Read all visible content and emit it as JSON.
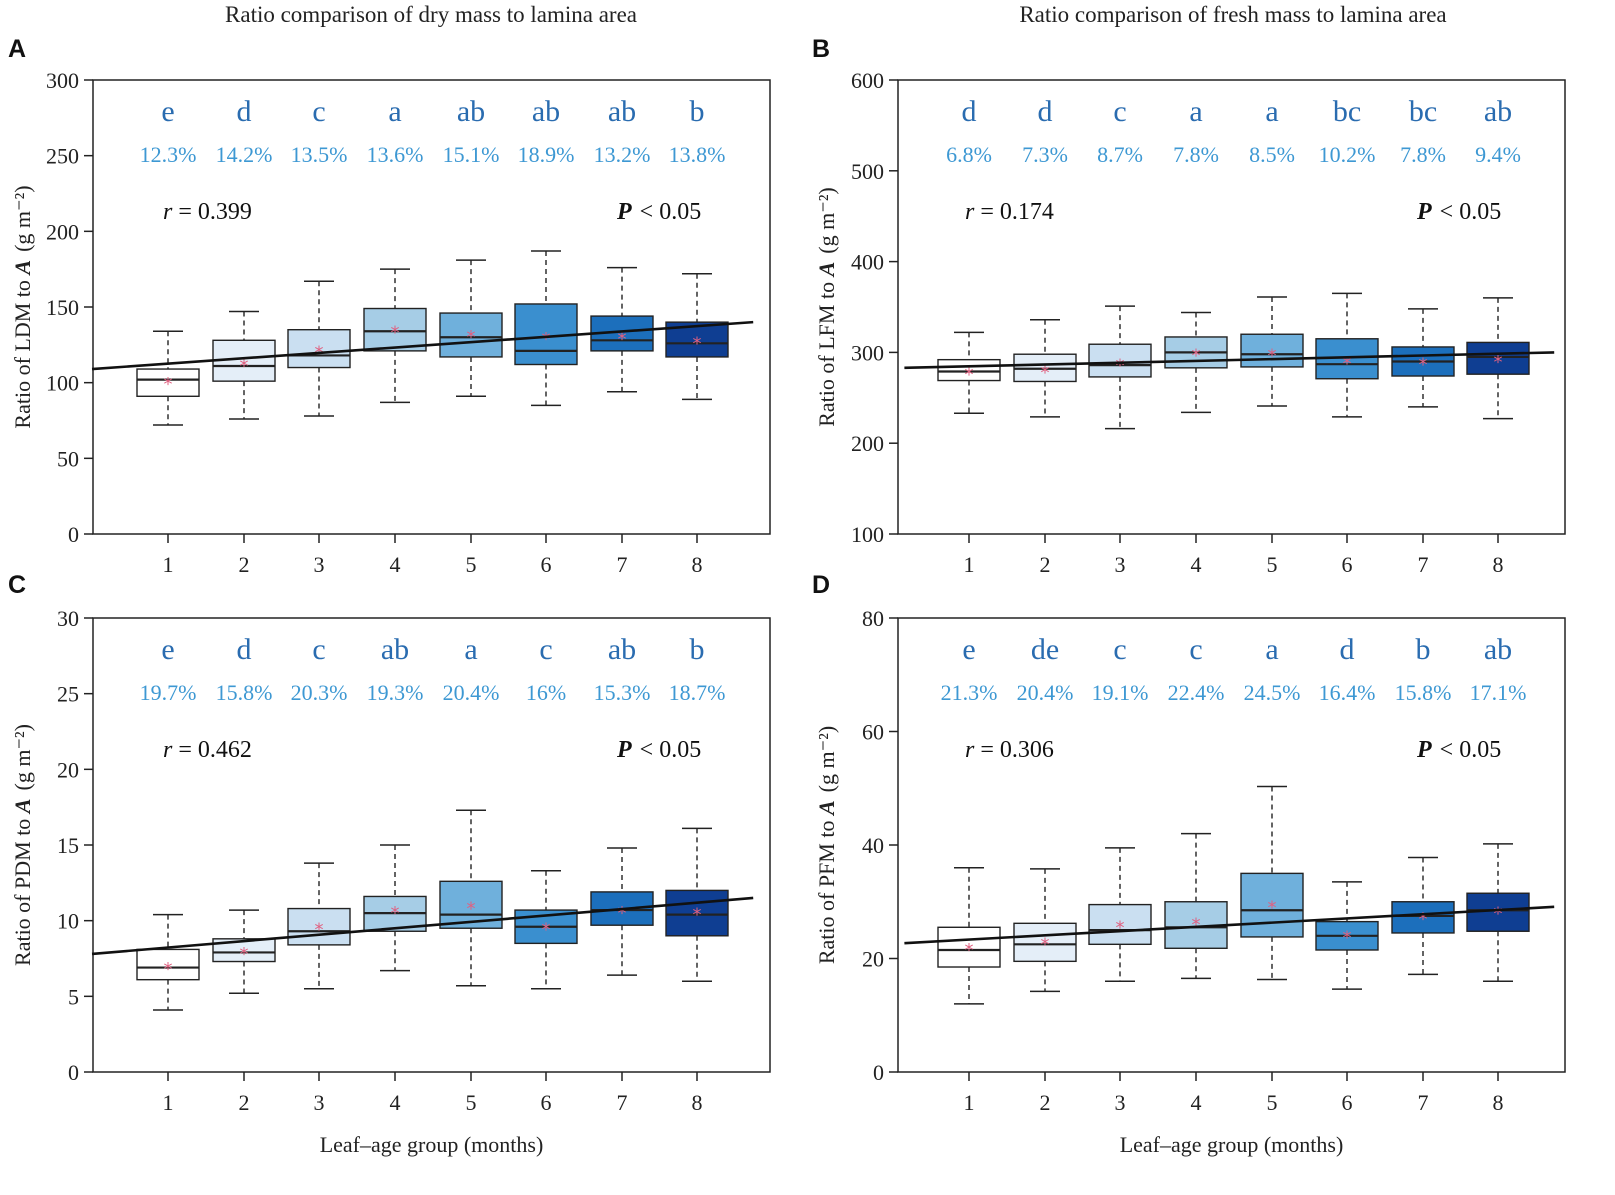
{
  "colors": {
    "letters": "#2a6cb0",
    "cv": "#3d98d3",
    "mean_marker": "#e06080",
    "box_fills": [
      "#ffffff",
      "#e4eef8",
      "#cadff1",
      "#a6cde6",
      "#6fb0dc",
      "#3a8fcf",
      "#1c6fbc",
      "#0f3e92"
    ]
  },
  "chart_data": [
    {
      "type": "box",
      "panel": "A",
      "title": "Ratio comparison of dry mass to lamina area",
      "xlabel": "",
      "ylabel": "Ratio of LDM to A (g m⁻²)",
      "ylabel_main": "Ratio of LDM to ",
      "ylabel_italic": "A",
      "ylabel_unit": "(g m⁻²)",
      "ylim": [
        0,
        300
      ],
      "yticks": [
        0,
        50,
        100,
        150,
        200,
        250,
        300
      ],
      "categories": [
        "1",
        "2",
        "3",
        "4",
        "5",
        "6",
        "7",
        "8"
      ],
      "boxes": [
        {
          "min": 72,
          "q1": 91,
          "median": 102,
          "q3": 109,
          "max": 134,
          "mean": 101
        },
        {
          "min": 76,
          "q1": 101,
          "median": 111,
          "q3": 128,
          "max": 147,
          "mean": 113
        },
        {
          "min": 78,
          "q1": 110,
          "median": 118,
          "q3": 135,
          "max": 167,
          "mean": 122
        },
        {
          "min": 87,
          "q1": 121,
          "median": 134,
          "q3": 149,
          "max": 175,
          "mean": 135
        },
        {
          "min": 91,
          "q1": 117,
          "median": 130,
          "q3": 146,
          "max": 181,
          "mean": 132
        },
        {
          "min": 85,
          "q1": 112,
          "median": 121,
          "q3": 152,
          "max": 187,
          "mean": 131
        },
        {
          "min": 94,
          "q1": 121,
          "median": 128,
          "q3": 144,
          "max": 176,
          "mean": 131
        },
        {
          "min": 89,
          "q1": 117,
          "median": 126,
          "q3": 140,
          "max": 172,
          "mean": 128
        }
      ],
      "letters": [
        "e",
        "d",
        "c",
        "a",
        "ab",
        "ab",
        "ab",
        "b"
      ],
      "cv": [
        "12.3%",
        "14.2%",
        "13.5%",
        "13.6%",
        "15.1%",
        "18.9%",
        "13.2%",
        "13.8%"
      ],
      "r_label": "r",
      "r_value": "= 0.399",
      "p_label": "P",
      "p_value": "< 0.05",
      "regression": {
        "x": [
          0.0,
          8.7
        ],
        "y": [
          109,
          140
        ]
      }
    },
    {
      "type": "box",
      "panel": "B",
      "title": "Ratio comparison of fresh mass to lamina area",
      "xlabel": "",
      "ylabel": "Ratio of LFM to A (g m⁻²)",
      "ylabel_main": "Ratio of LFM to ",
      "ylabel_italic": "A",
      "ylabel_unit": "(g m⁻²)",
      "ylim": [
        100,
        600
      ],
      "yticks": [
        100,
        200,
        300,
        400,
        500,
        600
      ],
      "categories": [
        "1",
        "2",
        "3",
        "4",
        "5",
        "6",
        "7",
        "8"
      ],
      "boxes": [
        {
          "min": 233,
          "q1": 269,
          "median": 279,
          "q3": 292,
          "max": 322,
          "mean": 279
        },
        {
          "min": 229,
          "q1": 268,
          "median": 282,
          "q3": 298,
          "max": 336,
          "mean": 281
        },
        {
          "min": 216,
          "q1": 273,
          "median": 286,
          "q3": 309,
          "max": 351,
          "mean": 289
        },
        {
          "min": 234,
          "q1": 283,
          "median": 300,
          "q3": 317,
          "max": 344,
          "mean": 300
        },
        {
          "min": 241,
          "q1": 284,
          "median": 298,
          "q3": 320,
          "max": 361,
          "mean": 300
        },
        {
          "min": 229,
          "q1": 271,
          "median": 287,
          "q3": 315,
          "max": 365,
          "mean": 291
        },
        {
          "min": 240,
          "q1": 274,
          "median": 290,
          "q3": 306,
          "max": 348,
          "mean": 290
        },
        {
          "min": 227,
          "q1": 276,
          "median": 295,
          "q3": 311,
          "max": 360,
          "mean": 293
        }
      ],
      "letters": [
        "d",
        "d",
        "c",
        "a",
        "a",
        "bc",
        "bc",
        "ab"
      ],
      "cv": [
        "6.8%",
        "7.3%",
        "8.7%",
        "7.8%",
        "8.5%",
        "10.2%",
        "7.8%",
        "9.4%"
      ],
      "r_label": "r",
      "r_value": "= 0.174",
      "p_label": "P",
      "p_value": "< 0.05",
      "regression": {
        "x": [
          0.15,
          8.7
        ],
        "y": [
          283,
          300
        ]
      }
    },
    {
      "type": "box",
      "panel": "C",
      "title": "",
      "xlabel": "Leaf–age group (months)",
      "ylabel": "Ratio of PDM to A (g m⁻²)",
      "ylabel_main": "Ratio of PDM to ",
      "ylabel_italic": "A",
      "ylabel_unit": "(g m⁻²)",
      "ylim": [
        0,
        30
      ],
      "yticks": [
        0,
        5,
        10,
        15,
        20,
        25,
        30
      ],
      "categories": [
        "1",
        "2",
        "3",
        "4",
        "5",
        "6",
        "7",
        "8"
      ],
      "boxes": [
        {
          "min": 4.1,
          "q1": 6.1,
          "median": 6.9,
          "q3": 8.1,
          "max": 10.4,
          "mean": 7.0
        },
        {
          "min": 5.2,
          "q1": 7.3,
          "median": 7.9,
          "q3": 8.8,
          "max": 10.7,
          "mean": 8.0
        },
        {
          "min": 5.5,
          "q1": 8.4,
          "median": 9.3,
          "q3": 10.8,
          "max": 13.8,
          "mean": 9.6
        },
        {
          "min": 6.7,
          "q1": 9.3,
          "median": 10.5,
          "q3": 11.6,
          "max": 15.0,
          "mean": 10.7
        },
        {
          "min": 5.7,
          "q1": 9.5,
          "median": 10.4,
          "q3": 12.6,
          "max": 17.3,
          "mean": 11.0
        },
        {
          "min": 5.5,
          "q1": 8.5,
          "median": 9.6,
          "q3": 10.7,
          "max": 13.3,
          "mean": 9.6
        },
        {
          "min": 6.4,
          "q1": 9.7,
          "median": 10.7,
          "q3": 11.9,
          "max": 14.8,
          "mean": 10.7
        },
        {
          "min": 6.0,
          "q1": 9.0,
          "median": 10.4,
          "q3": 12.0,
          "max": 16.1,
          "mean": 10.6
        }
      ],
      "letters": [
        "e",
        "d",
        "c",
        "ab",
        "a",
        "c",
        "ab",
        "b"
      ],
      "cv": [
        "19.7%",
        "15.8%",
        "20.3%",
        "19.3%",
        "20.4%",
        "16%",
        "15.3%",
        "18.7%"
      ],
      "r_label": "r",
      "r_value": "= 0.462",
      "p_label": "P",
      "p_value": "< 0.05",
      "regression": {
        "x": [
          0.0,
          8.7
        ],
        "y": [
          7.8,
          11.5
        ]
      }
    },
    {
      "type": "box",
      "panel": "D",
      "title": "",
      "xlabel": "Leaf–age group (months)",
      "ylabel": "Ratio of PFM to A (g m⁻²)",
      "ylabel_main": "Ratio of PFM to ",
      "ylabel_italic": "A",
      "ylabel_unit": "(g m⁻²)",
      "ylim": [
        0,
        80
      ],
      "yticks": [
        0,
        20,
        40,
        60,
        80
      ],
      "categories": [
        "1",
        "2",
        "3",
        "4",
        "5",
        "6",
        "7",
        "8"
      ],
      "boxes": [
        {
          "min": 12.0,
          "q1": 18.5,
          "median": 21.5,
          "q3": 25.5,
          "max": 36.0,
          "mean": 22.0
        },
        {
          "min": 14.2,
          "q1": 19.5,
          "median": 22.5,
          "q3": 26.2,
          "max": 35.8,
          "mean": 23.0
        },
        {
          "min": 16.0,
          "q1": 22.5,
          "median": 25.0,
          "q3": 29.5,
          "max": 39.5,
          "mean": 26.0
        },
        {
          "min": 16.5,
          "q1": 21.8,
          "median": 25.5,
          "q3": 30.0,
          "max": 42.0,
          "mean": 26.5
        },
        {
          "min": 16.3,
          "q1": 23.8,
          "median": 28.5,
          "q3": 35.0,
          "max": 50.3,
          "mean": 29.5
        },
        {
          "min": 14.6,
          "q1": 21.5,
          "median": 24.0,
          "q3": 26.5,
          "max": 33.5,
          "mean": 24.2
        },
        {
          "min": 17.2,
          "q1": 24.5,
          "median": 27.5,
          "q3": 30.0,
          "max": 37.8,
          "mean": 27.5
        },
        {
          "min": 16.0,
          "q1": 24.8,
          "median": 28.5,
          "q3": 31.5,
          "max": 40.2,
          "mean": 28.5
        }
      ],
      "letters": [
        "e",
        "de",
        "c",
        "c",
        "a",
        "d",
        "b",
        "ab"
      ],
      "cv": [
        "21.3%",
        "20.4%",
        "19.1%",
        "22.4%",
        "24.5%",
        "16.4%",
        "15.8%",
        "17.1%"
      ],
      "r_label": "r",
      "r_value": "= 0.306",
      "p_label": "P",
      "p_value": "< 0.05",
      "regression": {
        "x": [
          0.15,
          8.7
        ],
        "y": [
          22.7,
          29.1
        ]
      }
    }
  ]
}
